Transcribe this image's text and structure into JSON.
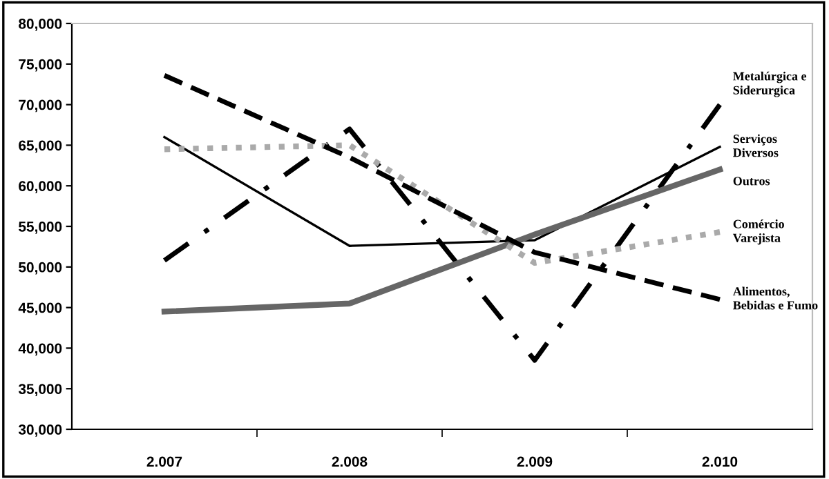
{
  "chart_data": {
    "type": "line",
    "categories": [
      "2.007",
      "2.008",
      "2.009",
      "2.010"
    ],
    "series": [
      {
        "name": "Metalúrgica e\nSiderurgica",
        "color": "#000000",
        "line_style": "dashdot",
        "values": [
          50800,
          67000,
          38500,
          70000
        ]
      },
      {
        "name": "Serviços\nDiversos",
        "color": "#000000",
        "line_style": "solid",
        "values": [
          66000,
          52600,
          53300,
          64800
        ]
      },
      {
        "name": "Outros",
        "color": "#666666",
        "line_style": "solid",
        "values": [
          44500,
          45500,
          54000,
          62000
        ]
      },
      {
        "name": "Comércio\nVarejista",
        "color": "#aaaaaa",
        "line_style": "dotted",
        "values": [
          64500,
          65000,
          50500,
          54300
        ]
      },
      {
        "name": "Alimentos,\nBebidas e Fumo",
        "color": "#000000",
        "line_style": "dashed",
        "values": [
          73600,
          63500,
          51800,
          46000
        ]
      }
    ],
    "ylim": [
      30000,
      80000
    ],
    "yticks": [
      {
        "value": 30000,
        "label": "30,000"
      },
      {
        "value": 35000,
        "label": "35,000"
      },
      {
        "value": 40000,
        "label": "40,000"
      },
      {
        "value": 45000,
        "label": "45,000"
      },
      {
        "value": 50000,
        "label": "50,000"
      },
      {
        "value": 55000,
        "label": "55,000"
      },
      {
        "value": 60000,
        "label": "60,000"
      },
      {
        "value": 65000,
        "label": "65,000"
      },
      {
        "value": 70000,
        "label": "70,000"
      },
      {
        "value": 75000,
        "label": "75,000"
      },
      {
        "value": 80000,
        "label": "80,000"
      }
    ],
    "grid": false,
    "legend": false,
    "marker": "none"
  }
}
